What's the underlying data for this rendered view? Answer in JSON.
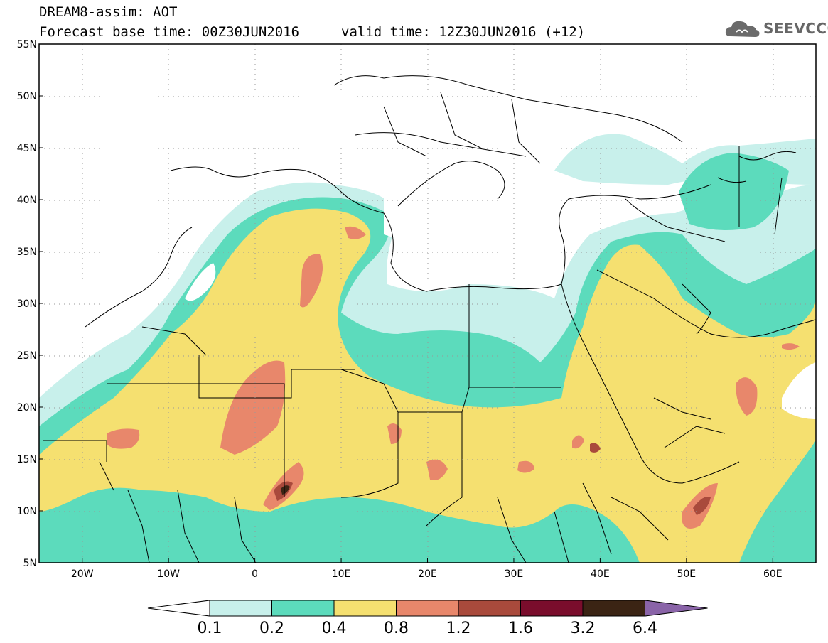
{
  "header": {
    "title": "DREAM8-assim: AOT",
    "base_time_label": "Forecast base time: 00Z30JUN2016",
    "valid_time_label": "valid time: 12Z30JUN2016 (+12)"
  },
  "logo": {
    "text": "SEEVCCC",
    "icon": "cloud-icon"
  },
  "axes": {
    "lat_labels": [
      "55N",
      "50N",
      "45N",
      "40N",
      "35N",
      "30N",
      "25N",
      "20N",
      "15N",
      "10N",
      "5N"
    ],
    "lon_labels": [
      "20W",
      "10W",
      "0",
      "10E",
      "20E",
      "30E",
      "40E",
      "50E",
      "60E"
    ],
    "lat_range": [
      5,
      55
    ],
    "lon_range": [
      -25,
      65
    ]
  },
  "colorbar": {
    "labels": [
      "0.1",
      "0.2",
      "0.4",
      "0.8",
      "1.2",
      "1.6",
      "3.2",
      "6.4"
    ],
    "colors": [
      "#c8f0eb",
      "#5cdbbc",
      "#f5e070",
      "#e8876b",
      "#a94a3c",
      "#7a0d2c",
      "#3b2414",
      "#8a64a8"
    ],
    "below_color": "#ffffff"
  },
  "chart_data": {
    "type": "heatmap",
    "variable": "AOT",
    "levels": [
      0.1,
      0.2,
      0.4,
      0.8,
      1.2,
      1.6,
      3.2,
      6.4
    ],
    "xlim": [
      -25,
      65
    ],
    "ylim": [
      5,
      55
    ],
    "grid": true
  }
}
